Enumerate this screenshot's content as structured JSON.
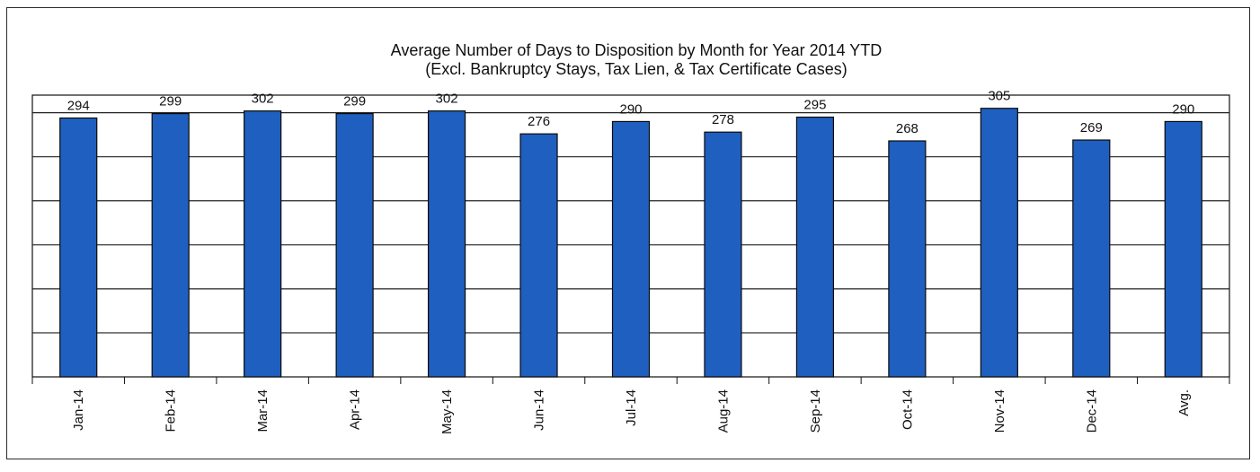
{
  "chart_data": {
    "type": "bar",
    "title": "Average Number of Days to Disposition  by Month for Year 2014 YTD",
    "subtitle": "(Excl. Bankruptcy Stays, Tax Lien, & Tax Certificate Cases)",
    "categories": [
      "Jan-14",
      "Feb-14",
      "Mar-14",
      "Apr-14",
      "May-14",
      "Jun-14",
      "Jul-14",
      "Aug-14",
      "Sep-14",
      "Oct-14",
      "Nov-14",
      "Dec-14",
      "Avg."
    ],
    "values": [
      294,
      299,
      302,
      299,
      302,
      276,
      290,
      278,
      295,
      268,
      305,
      269,
      290
    ],
    "ylim": [
      0,
      320
    ],
    "grid": true,
    "bar_color": "#1f5fbf",
    "bar_edge_color": "#0a0a0a"
  }
}
